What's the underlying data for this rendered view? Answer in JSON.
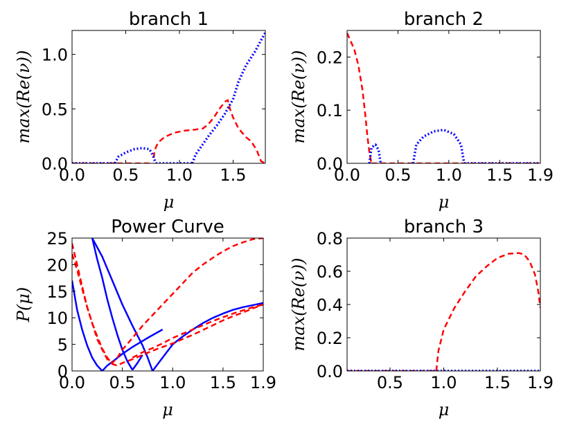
{
  "chart_data": [
    {
      "type": "line",
      "title": "branch 1",
      "xlabel": "μ",
      "ylabel": "max(Re(ν))",
      "xlim": [
        0,
        1.8
      ],
      "ylim": [
        0,
        1.22
      ],
      "xticks": [
        0,
        0.5,
        1,
        1.5
      ],
      "xtick_labels": [
        "0.0",
        "0.5",
        "1.0",
        "1.5"
      ],
      "yticks": [
        0,
        0.5,
        1
      ],
      "ytick_labels": [
        "0.0",
        "0.5",
        "1.0"
      ],
      "series": [
        {
          "color": "#ff0000",
          "style": "dashed",
          "segments": [
            [
              [
                0,
                0
              ],
              [
                0.4,
                0
              ],
              [
                0.72,
                0
              ]
            ],
            [
              [
                0.76,
                0.05
              ],
              [
                0.77,
                0.12
              ],
              [
                0.8,
                0.19
              ],
              [
                0.86,
                0.24
              ],
              [
                0.95,
                0.28
              ],
              [
                1.05,
                0.3
              ],
              [
                1.15,
                0.31
              ],
              [
                1.22,
                0.32
              ],
              [
                1.27,
                0.36
              ],
              [
                1.32,
                0.42
              ],
              [
                1.38,
                0.51
              ],
              [
                1.43,
                0.57
              ],
              [
                1.45,
                0.58
              ],
              [
                1.47,
                0.5
              ],
              [
                1.5,
                0.42
              ],
              [
                1.55,
                0.32
              ],
              [
                1.62,
                0.24
              ],
              [
                1.67,
                0.2
              ],
              [
                1.72,
                0.12
              ],
              [
                1.76,
                0.02
              ],
              [
                1.8,
                0
              ]
            ]
          ]
        },
        {
          "color": "#0000ff",
          "style": "dotted",
          "segments": [
            [
              [
                0,
                0
              ],
              [
                0.4,
                0
              ]
            ],
            [
              [
                0.4,
                0
              ],
              [
                0.43,
                0.06
              ],
              [
                0.5,
                0.1
              ],
              [
                0.58,
                0.13
              ],
              [
                0.65,
                0.14
              ],
              [
                0.72,
                0.13
              ],
              [
                0.75,
                0.08
              ],
              [
                0.78,
                0
              ]
            ],
            [
              [
                0.78,
                0
              ],
              [
                1.12,
                0
              ]
            ],
            [
              [
                1.12,
                0
              ],
              [
                1.15,
                0.08
              ],
              [
                1.2,
                0.15
              ],
              [
                1.27,
                0.25
              ],
              [
                1.35,
                0.35
              ],
              [
                1.42,
                0.45
              ],
              [
                1.5,
                0.59
              ],
              [
                1.55,
                0.75
              ],
              [
                1.62,
                0.9
              ],
              [
                1.7,
                1.02
              ],
              [
                1.76,
                1.13
              ],
              [
                1.8,
                1.2
              ]
            ]
          ]
        }
      ]
    },
    {
      "type": "line",
      "title": "branch 2",
      "xlabel": "μ",
      "ylabel": "max(Re(ν))",
      "xlim": [
        0,
        1.9
      ],
      "ylim": [
        0,
        0.25
      ],
      "xticks": [
        0,
        0.5,
        1,
        1.5,
        1.9
      ],
      "xtick_labels": [
        "0.0",
        "0.5",
        "1.0",
        "1.5",
        "1.9"
      ],
      "yticks": [
        0,
        0.1,
        0.2
      ],
      "ytick_labels": [
        "0.0",
        "0.1",
        "0.2"
      ],
      "series": [
        {
          "color": "#ff0000",
          "style": "dashed",
          "segments": [
            [
              [
                0,
                0.245
              ],
              [
                0.03,
                0.232
              ],
              [
                0.07,
                0.215
              ],
              [
                0.11,
                0.185
              ],
              [
                0.15,
                0.14
              ],
              [
                0.18,
                0.09
              ],
              [
                0.2,
                0.05
              ],
              [
                0.22,
                0.02
              ],
              [
                0.24,
                0
              ]
            ],
            [
              [
                0.24,
                0
              ],
              [
                1.9,
                0
              ]
            ]
          ]
        },
        {
          "color": "#0000ff",
          "style": "dotted",
          "segments": [
            [
              [
                0.22,
                0
              ],
              [
                0.24,
                0.03
              ],
              [
                0.28,
                0.035
              ],
              [
                0.31,
                0.025
              ],
              [
                0.33,
                0
              ]
            ],
            [
              [
                0.65,
                0
              ],
              [
                0.68,
                0.035
              ],
              [
                0.75,
                0.05
              ],
              [
                0.85,
                0.06
              ],
              [
                0.95,
                0.063
              ],
              [
                1.05,
                0.055
              ],
              [
                1.12,
                0.035
              ],
              [
                1.15,
                0
              ]
            ],
            [
              [
                1.15,
                0
              ],
              [
                1.9,
                0
              ]
            ]
          ]
        }
      ]
    },
    {
      "type": "line",
      "title": "Power Curve",
      "xlabel": "μ",
      "ylabel": "P(μ)",
      "xlim": [
        0,
        1.9
      ],
      "ylim": [
        0,
        25
      ],
      "xticks": [
        0,
        0.5,
        1,
        1.5,
        1.9
      ],
      "xtick_labels": [
        "0.0",
        "0.5",
        "1.0",
        "1.5",
        "1.9"
      ],
      "yticks": [
        0,
        5,
        10,
        15,
        20,
        25
      ],
      "ytick_labels": [
        "0",
        "5",
        "10",
        "15",
        "20",
        "25"
      ],
      "series": [
        {
          "color": "#0000ff",
          "style": "solid",
          "segments": [
            [
              [
                0,
                17
              ],
              [
                0.05,
                11.5
              ],
              [
                0.1,
                7.8
              ],
              [
                0.15,
                4.8
              ],
              [
                0.2,
                2.5
              ],
              [
                0.25,
                1.0
              ],
              [
                0.3,
                0
              ]
            ],
            [
              [
                0.3,
                0
              ],
              [
                0.35,
                1.0
              ],
              [
                0.42,
                2.0
              ],
              [
                0.5,
                3.2
              ],
              [
                0.6,
                4.5
              ],
              [
                0.75,
                6.2
              ],
              [
                0.9,
                7.8
              ]
            ],
            [
              [
                0.2,
                25
              ],
              [
                0.25,
                21
              ],
              [
                0.3,
                17.5
              ],
              [
                0.35,
                13.5
              ],
              [
                0.4,
                10.0
              ],
              [
                0.45,
                6.8
              ],
              [
                0.5,
                4.0
              ],
              [
                0.55,
                1.8
              ],
              [
                0.6,
                0.2
              ]
            ],
            [
              [
                0.6,
                0.2
              ],
              [
                0.65,
                1.5
              ],
              [
                0.7,
                3.0
              ]
            ],
            [
              [
                0.2,
                25
              ],
              [
                0.3,
                21.5
              ],
              [
                0.4,
                17.0
              ],
              [
                0.5,
                12.5
              ],
              [
                0.6,
                8.5
              ],
              [
                0.7,
                4.8
              ],
              [
                0.75,
                2.6
              ],
              [
                0.8,
                0
              ]
            ],
            [
              [
                0.8,
                0
              ],
              [
                0.9,
                2.5
              ],
              [
                1.0,
                5.0
              ],
              [
                1.1,
                6.5
              ],
              [
                1.2,
                7.8
              ],
              [
                1.3,
                9.0
              ],
              [
                1.4,
                10.0
              ],
              [
                1.5,
                10.8
              ],
              [
                1.6,
                11.5
              ],
              [
                1.7,
                12.0
              ],
              [
                1.8,
                12.4
              ],
              [
                1.9,
                12.8
              ]
            ]
          ]
        },
        {
          "color": "#ff0000",
          "style": "dashed",
          "segments": [
            [
              [
                0,
                22
              ],
              [
                0.05,
                19
              ],
              [
                0.1,
                15.5
              ],
              [
                0.15,
                12.0
              ],
              [
                0.2,
                9.0
              ],
              [
                0.25,
                6.5
              ],
              [
                0.3,
                4.2
              ],
              [
                0.35,
                2.5
              ],
              [
                0.4,
                1.3
              ],
              [
                0.45,
                1.0
              ],
              [
                0.5,
                1.5
              ],
              [
                0.6,
                2.2
              ],
              [
                0.7,
                3.0
              ],
              [
                0.8,
                3.8
              ],
              [
                0.9,
                4.5
              ],
              [
                1.0,
                5.2
              ],
              [
                1.1,
                6.0
              ],
              [
                1.2,
                6.8
              ],
              [
                1.3,
                7.7
              ],
              [
                1.4,
                8.6
              ],
              [
                1.5,
                9.5
              ],
              [
                1.6,
                10.3
              ],
              [
                1.7,
                11.0
              ],
              [
                1.8,
                11.8
              ],
              [
                1.9,
                12.5
              ]
            ],
            [
              [
                0,
                24
              ],
              [
                0.05,
                20
              ],
              [
                0.1,
                16
              ],
              [
                0.15,
                12
              ],
              [
                0.2,
                9
              ],
              [
                0.25,
                6
              ],
              [
                0.3,
                4
              ],
              [
                0.35,
                2.2
              ],
              [
                0.4,
                1.5
              ],
              [
                0.45,
                2.5
              ],
              [
                0.5,
                4.0
              ],
              [
                0.6,
                6.2
              ],
              [
                0.7,
                8.5
              ],
              [
                0.8,
                10.5
              ],
              [
                0.9,
                12.5
              ],
              [
                1.0,
                14.5
              ],
              [
                1.1,
                16.5
              ],
              [
                1.2,
                18.5
              ],
              [
                1.3,
                20.0
              ],
              [
                1.4,
                21.3
              ],
              [
                1.5,
                22.5
              ],
              [
                1.6,
                23.5
              ],
              [
                1.7,
                24.2
              ],
              [
                1.8,
                24.8
              ],
              [
                1.9,
                25.0
              ]
            ],
            [
              [
                0.6,
                2.5
              ],
              [
                0.7,
                3.5
              ],
              [
                0.8,
                4.3
              ],
              [
                0.9,
                5.2
              ],
              [
                1.0,
                6.2
              ],
              [
                1.1,
                7.0
              ],
              [
                1.2,
                7.8
              ],
              [
                1.3,
                8.6
              ],
              [
                1.4,
                9.4
              ],
              [
                1.5,
                10.1
              ],
              [
                1.6,
                10.8
              ],
              [
                1.7,
                11.4
              ],
              [
                1.8,
                12.0
              ],
              [
                1.9,
                12.5
              ]
            ]
          ]
        }
      ]
    },
    {
      "type": "line",
      "title": "branch 3",
      "xlabel": "μ",
      "ylabel": "max(Re(ν))",
      "xlim": [
        0.1,
        1.9
      ],
      "ylim": [
        0,
        0.8
      ],
      "xticks": [
        0.5,
        1,
        1.5,
        1.9
      ],
      "xtick_labels": [
        "0.5",
        "1.0",
        "1.5",
        "1.9"
      ],
      "yticks": [
        0,
        0.2,
        0.4,
        0.6,
        0.8
      ],
      "ytick_labels": [
        "0.0",
        "0.2",
        "0.4",
        "0.6",
        "0.8"
      ],
      "series": [
        {
          "color": "#ff0000",
          "style": "dashed",
          "segments": [
            [
              [
                0.1,
                0
              ],
              [
                0.5,
                0
              ],
              [
                0.93,
                0
              ]
            ],
            [
              [
                0.93,
                0
              ],
              [
                0.95,
                0.12
              ],
              [
                1.0,
                0.25
              ],
              [
                1.1,
                0.38
              ],
              [
                1.2,
                0.48
              ],
              [
                1.3,
                0.57
              ],
              [
                1.4,
                0.63
              ],
              [
                1.5,
                0.68
              ],
              [
                1.6,
                0.705
              ],
              [
                1.7,
                0.71
              ],
              [
                1.75,
                0.7
              ],
              [
                1.8,
                0.66
              ],
              [
                1.85,
                0.58
              ],
              [
                1.88,
                0.48
              ],
              [
                1.9,
                0.38
              ]
            ]
          ]
        },
        {
          "color": "#0000ff",
          "style": "dotted",
          "segments": [
            [
              [
                0.1,
                0
              ],
              [
                1.9,
                0
              ]
            ]
          ]
        }
      ]
    }
  ]
}
